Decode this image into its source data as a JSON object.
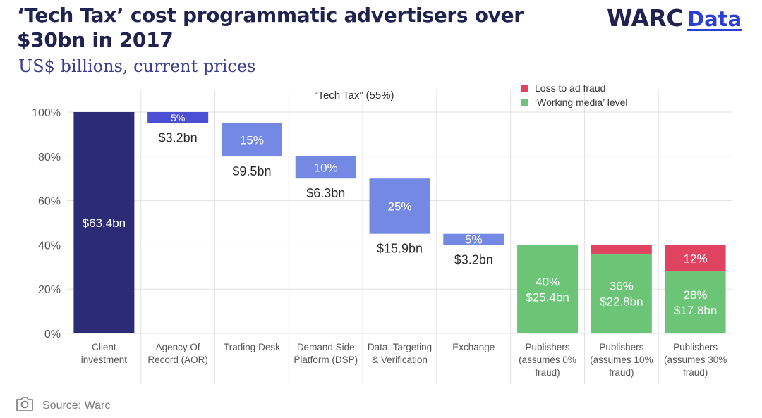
{
  "header": {
    "title": "‘Tech Tax’ cost programmatic advertisers over $30bn in 2017",
    "subtitle": "US$ billions, current prices",
    "logo_main": "WARC",
    "logo_sub": "Data"
  },
  "footer": {
    "source": "Source: Warc",
    "icon": "camera-icon"
  },
  "colors": {
    "client": "#2b2c75",
    "tech_small": "#4a4fd4",
    "tech": "#7389e3",
    "working_media": "#6cc476",
    "fraud": "#e0435f",
    "axis_text": "#555555",
    "grid": "#e1e1e1"
  },
  "chart_data": {
    "type": "bar",
    "subtype": "waterfall",
    "annotation": "“Tech Tax” (55%)",
    "ylim": [
      0,
      100
    ],
    "yticks": [
      "0%",
      "20%",
      "40%",
      "60%",
      "80%",
      "100%"
    ],
    "grid": true,
    "legend_position": "top-right",
    "legend": [
      {
        "label": "Loss to ad fraud",
        "color_key": "fraud"
      },
      {
        "label": "‘Working media’ level",
        "color_key": "working_media"
      }
    ],
    "categories": [
      [
        "Client",
        "investment"
      ],
      [
        "Agency Of",
        "Record (AOR)"
      ],
      [
        "Trading Desk"
      ],
      [
        "Demand Side",
        "Platform (DSP)"
      ],
      [
        "Data, Targeting",
        "& Verification"
      ],
      [
        "Exchange"
      ],
      [
        "Publishers",
        "(assumes 0%",
        "fraud)"
      ],
      [
        "Publishers",
        "(assumes 10%",
        "fraud)"
      ],
      [
        "Publishers",
        "(assumes 30%",
        "fraud)"
      ]
    ],
    "bars": [
      {
        "segments": [
          {
            "bottom": 0,
            "top": 100,
            "color_key": "client",
            "inside": [
              "$63.4bn"
            ]
          }
        ]
      },
      {
        "segments": [
          {
            "bottom": 95,
            "top": 100,
            "color_key": "tech_small",
            "inside": [
              "5%"
            ],
            "small": true
          }
        ],
        "below": "$3.2bn"
      },
      {
        "segments": [
          {
            "bottom": 80,
            "top": 95,
            "color_key": "tech",
            "inside": [
              "15%"
            ]
          }
        ],
        "below": "$9.5bn"
      },
      {
        "segments": [
          {
            "bottom": 70,
            "top": 80,
            "color_key": "tech",
            "inside": [
              "10%"
            ]
          }
        ],
        "below": "$6.3bn"
      },
      {
        "segments": [
          {
            "bottom": 45,
            "top": 70,
            "color_key": "tech",
            "inside": [
              "25%"
            ]
          }
        ],
        "below": "$15.9bn"
      },
      {
        "segments": [
          {
            "bottom": 40,
            "top": 45,
            "color_key": "tech",
            "inside": [
              "5%"
            ]
          }
        ],
        "below": "$3.2bn"
      },
      {
        "segments": [
          {
            "bottom": 0,
            "top": 40,
            "color_key": "working_media",
            "inside": [
              "40%",
              "$25.4bn"
            ]
          }
        ]
      },
      {
        "segments": [
          {
            "bottom": 0,
            "top": 36,
            "color_key": "working_media",
            "inside": [
              "36%",
              "$22.8bn"
            ]
          },
          {
            "bottom": 36,
            "top": 40,
            "color_key": "fraud",
            "inside": []
          }
        ]
      },
      {
        "segments": [
          {
            "bottom": 0,
            "top": 28,
            "color_key": "working_media",
            "inside": [
              "28%",
              "$17.8bn"
            ]
          },
          {
            "bottom": 28,
            "top": 40,
            "color_key": "fraud",
            "inside": [
              "12%"
            ]
          }
        ]
      }
    ]
  }
}
